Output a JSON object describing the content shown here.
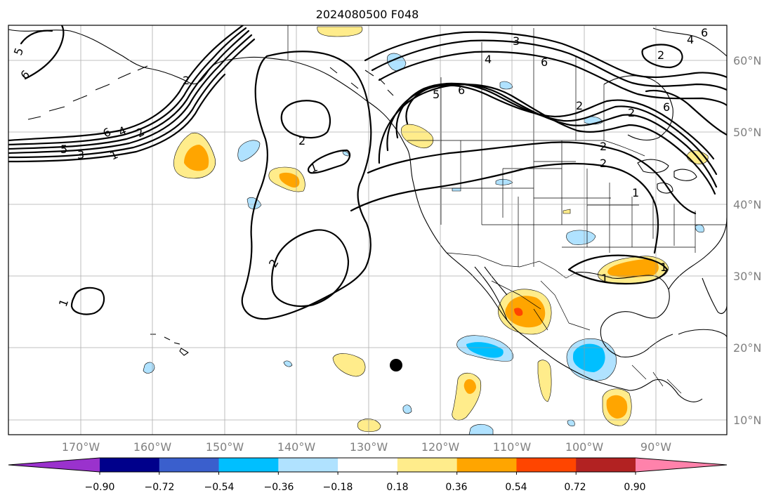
{
  "title": "2024080500 F048",
  "map": {
    "lat_labels": [
      "60°N",
      "50°N",
      "40°N",
      "30°N",
      "20°N",
      "10°N"
    ],
    "lon_labels": [
      "170°W",
      "160°W",
      "150°W",
      "140°W",
      "130°W",
      "120°W",
      "110°W",
      "100°W",
      "90°W"
    ],
    "contour_labels": [
      "5",
      "6",
      "6",
      "4",
      "2",
      "5",
      "3",
      "1",
      "2",
      "1",
      "2",
      "3",
      "4",
      "6",
      "5",
      "6",
      "2",
      "2",
      "6",
      "4",
      "2",
      "2",
      "1",
      "2",
      "1",
      "1",
      "2",
      "1",
      "6"
    ]
  },
  "colorbar": {
    "colors": [
      "#9a32cd",
      "#00008b",
      "#3a5fcd",
      "#00bfff",
      "#b0e2ff",
      "#ffffff",
      "#ffec8b",
      "#ffa500",
      "#ff4500",
      "#b22222",
      "#ff82ab"
    ],
    "tick_labels": [
      "−0.90",
      "−0.72",
      "−0.54",
      "−0.36",
      "−0.18",
      "0.18",
      "0.36",
      "0.54",
      "0.72",
      "0.90"
    ]
  }
}
